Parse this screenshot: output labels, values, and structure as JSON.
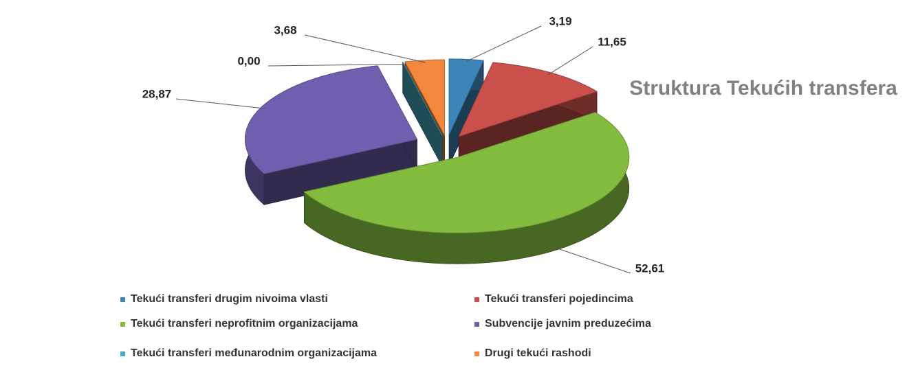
{
  "chart_data": {
    "type": "pie3d",
    "title": "Struktura Tekućih transfera",
    "categories": [
      "Tekući transferi drugim nivoima vlasti",
      "Tekući transferi pojedincima",
      "Tekući transferi neprofitnim organizacijama",
      "Subvencije javnim preduzećima",
      "Tekući transferi međunarodnim organizacijama",
      "Drugi tekući rashodi"
    ],
    "values": [
      3.19,
      11.65,
      52.61,
      28.87,
      0.0,
      3.68
    ],
    "value_labels": [
      "3,19",
      "11,65",
      "52,61",
      "28,87",
      "0,00",
      "3,68"
    ],
    "colors": [
      "#3d85b8",
      "#c9504b",
      "#82bb3e",
      "#6f5fae",
      "#46a9c4",
      "#f2873d"
    ]
  }
}
